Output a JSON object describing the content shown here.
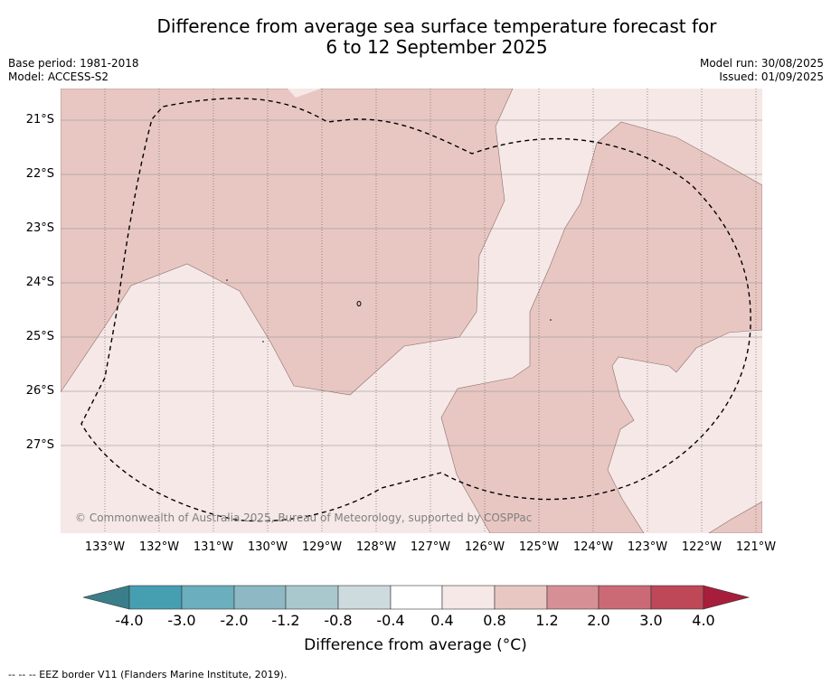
{
  "title": {
    "line1": "Difference from average sea surface temperature forecast for",
    "line2": "6 to 12 September 2025"
  },
  "meta": {
    "base_period": "Base period: 1981-2018",
    "model": "Model: ACCESS-S2",
    "model_run": "Model run: 30/08/2025",
    "issued": "Issued: 01/09/2025"
  },
  "map": {
    "latitude_labels": [
      "21°S",
      "22°S",
      "23°S",
      "24°S",
      "25°S",
      "26°S",
      "27°S"
    ],
    "longitude_labels": [
      "133°W",
      "132°W",
      "131°W",
      "130°W",
      "129°W",
      "128°W",
      "127°W",
      "126°W",
      "125°W",
      "124°W",
      "123°W",
      "122°W",
      "121°W"
    ],
    "copyright": "© Commonwealth of Australia 2025, Bureau of Meteorology, supported by COSPPac",
    "colors": {
      "anomaly_0_4_to_0_8": "#f5e8e6",
      "anomaly_0_8_to_1_2": "#e8c7c2"
    }
  },
  "colorbar": {
    "ticks": [
      "-4.0",
      "-3.0",
      "-2.0",
      "-1.2",
      "-0.8",
      "-0.4",
      "0.4",
      "0.8",
      "1.2",
      "2.0",
      "3.0",
      "4.0"
    ],
    "colors": [
      "#3a7e8a",
      "#459fb1",
      "#6baebd",
      "#8db8c4",
      "#a8c8cd",
      "#cddade",
      "#ffffff",
      "#f5e8e6",
      "#e8c7c2",
      "#d78f96",
      "#cb6a75",
      "#be4857",
      "#a71e3c"
    ],
    "title": "Difference from average (°C)"
  },
  "footnote": "--  --  -- EEZ border V11 (Flanders Marine Institute, 2019)."
}
